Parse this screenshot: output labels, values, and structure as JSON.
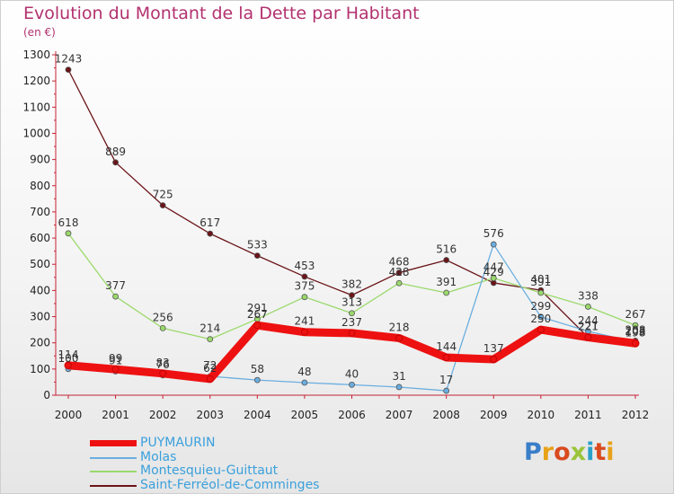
{
  "title": "Evolution du Montant de la Dette par Habitant",
  "subtitle": "(en €)",
  "brand": "Proxiti",
  "chart_data": {
    "type": "line",
    "title": "Evolution du Montant de la Dette par Habitant",
    "subtitle": "(en €)",
    "xlabel": "",
    "ylabel": "",
    "ylim": [
      0,
      1300
    ],
    "ytick_step": 100,
    "grid": false,
    "legend_position": "bottom-left",
    "categories": [
      "2000",
      "2001",
      "2002",
      "2003",
      "2004",
      "2005",
      "2006",
      "2007",
      "2008",
      "2009",
      "2010",
      "2011",
      "2012"
    ],
    "series": [
      {
        "name": "Saint-Ferréol-de-Comminges",
        "color": "#6b1418",
        "values": [
          1243,
          889,
          725,
          617,
          533,
          453,
          382,
          468,
          516,
          429,
          401,
          221,
          208
        ]
      },
      {
        "name": "Montesquieu-Guittaut",
        "color": "#9ad96b",
        "values": [
          618,
          377,
          256,
          214,
          291,
          375,
          313,
          428,
          391,
          447,
          391,
          338,
          267
        ]
      },
      {
        "name": "Molas",
        "color": "#6aaee0",
        "values": [
          100,
          91,
          76,
          72,
          58,
          48,
          40,
          31,
          17,
          576,
          299,
          244,
          203
        ]
      },
      {
        "name": "PUYMAURIN",
        "color": "#ee1111",
        "values": [
          114,
          99,
          83,
          62,
          267,
          241,
          237,
          218,
          144,
          137,
          250,
          221,
          198
        ]
      }
    ],
    "legend_order": [
      "PUYMAURIN",
      "Molas",
      "Montesquieu-Guittaut",
      "Saint-Ferréol-de-Comminges"
    ]
  }
}
